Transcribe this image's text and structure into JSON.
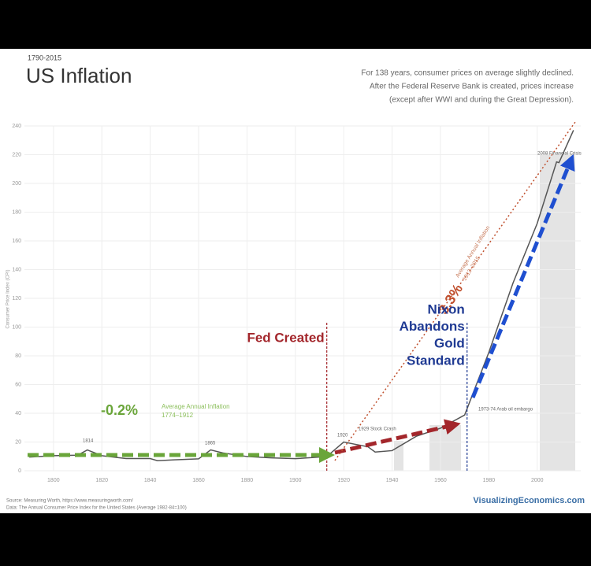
{
  "chart_data": {
    "type": "line",
    "subtitle": "1790-2015",
    "title": "US Inflation",
    "note": [
      "For 138 years, consumer prices on average slightly declined.",
      "After the Federal Reserve Bank is created, prices increase",
      "(except after WWI and during the Great Depression)."
    ],
    "y_label": "Consumer Price Index (CPI)",
    "x": [
      1790,
      1800,
      1810,
      1814,
      1820,
      1830,
      1840,
      1843,
      1850,
      1860,
      1865,
      1870,
      1880,
      1890,
      1900,
      1910,
      1913,
      1920,
      1930,
      1933,
      1940,
      1950,
      1960,
      1970,
      1980,
      1990,
      2000,
      2008,
      2009,
      2015
    ],
    "values": [
      9.5,
      10.5,
      10.8,
      14.5,
      10.5,
      8.5,
      8.5,
      7,
      7.6,
      8.3,
      14.5,
      12.4,
      9.9,
      9,
      8.4,
      9.5,
      9.9,
      20,
      16.7,
      13,
      14,
      24,
      29.6,
      38.8,
      82.4,
      130.7,
      172.2,
      215,
      214.5,
      237
    ],
    "color": "#555555",
    "xlim": [
      1788,
      2018
    ],
    "ylim": [
      0,
      240
    ],
    "xticks": [
      1800,
      1820,
      1840,
      1860,
      1880,
      1900,
      1920,
      1940,
      1960,
      1980,
      2000
    ],
    "yticks": [
      0,
      20,
      40,
      60,
      80,
      100,
      120,
      140,
      160,
      180,
      200,
      220,
      240
    ],
    "grid": true,
    "events": [
      {
        "label": [
          "Fed Created"
        ],
        "year": 1913,
        "color": "#a3262b"
      },
      {
        "label": [
          "Nixon",
          "Abandons",
          "Gold",
          "Standard"
        ],
        "year": 1971,
        "color": "#1f3a93"
      }
    ],
    "rates": [
      {
        "label": "-0.2%",
        "text": "Average Annual Inflation",
        "period": "1774–1912",
        "color": "#6aa53a"
      },
      {
        "label": "3.3%",
        "text": "Average Annual Inflation",
        "period": "1913–2015",
        "color": "#c0502e"
      }
    ],
    "callouts": [
      "2008 Financial Crisis",
      "1929 Stock Crash",
      "1973-74 Arab oil embargo",
      "1814",
      "1865",
      "1920"
    ],
    "source": [
      "Source: Measuring Worth, https://www.measuringworth.com/",
      "Data: The Annual Consumer Price Index for the United States (Average 1982-84=100)"
    ],
    "brand": "VisualizingEconomics.com"
  }
}
